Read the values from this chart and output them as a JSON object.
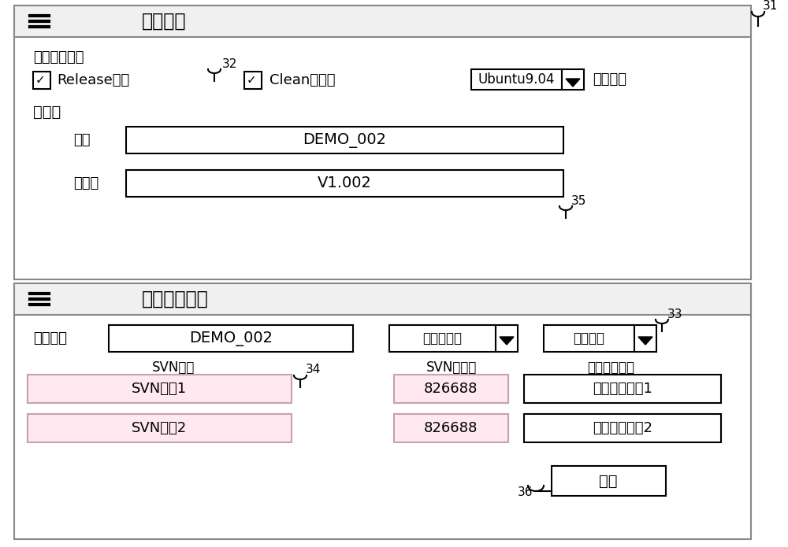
{
  "bg_color": "#ffffff",
  "section1_title": "基本信息",
  "section2_title": "编译详细信息",
  "compile_params_label": "编译参数选项",
  "check1_label": "Release编译",
  "check2_label": "Clean后编译",
  "dropdown_os_label": "Ubuntu9.04",
  "os_label": "操作系统",
  "pkg_info_label": "包信息",
  "pkg_name_label": "包名",
  "pkg_name_value": "DEMO_002",
  "pkg_version_label": "包版本",
  "pkg_version_value": "V1.002",
  "compile_target_label": "编译目标",
  "compile_target_value": "DEMO_002",
  "dropdown1_label": "可执行程序",
  "dropdown2_label": "静态编译",
  "svn_path_col": "SVN路径",
  "svn_ver_col": "SVN版本号",
  "local_path_col": "本地相对路径",
  "svn_path1": "SVN路径1",
  "svn_path2": "SVN路径2",
  "svn_ver1": "826688",
  "svn_ver2": "826688",
  "local_path1": "本地相对路径1",
  "local_path2": "本地相对路径2",
  "submit_label": "提交",
  "label_31": "31",
  "label_32": "32",
  "label_33": "33",
  "label_34": "34",
  "label_35": "35",
  "label_36": "36",
  "pink_fill": "#ffe8f0",
  "pink_border": "#c8a0b0",
  "section_header_bg": "#f0f0f0"
}
